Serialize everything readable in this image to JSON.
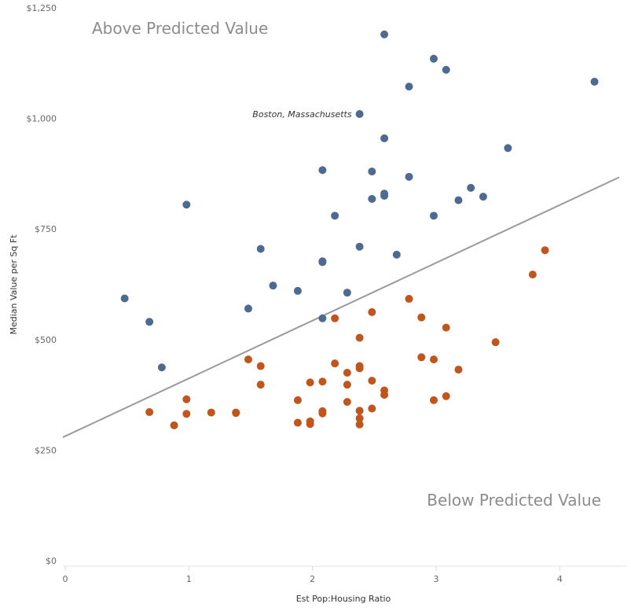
{
  "chart_data": {
    "type": "scatter",
    "xlabel": "Est Pop:Housing Ratio",
    "ylabel": "Median Value per Sq Ft",
    "xlim": [
      0,
      4.5
    ],
    "ylim": [
      0,
      1250
    ],
    "x_ticks": [
      "0",
      "1",
      "2",
      "3",
      "4"
    ],
    "y_ticks": [
      "$0",
      "$250",
      "$500",
      "$750",
      "$1,000",
      "$1,250"
    ],
    "grid": false,
    "region_labels": {
      "above": "Above Predicted Value",
      "below": "Below Predicted Value"
    },
    "colors": {
      "above": "#4e6a91",
      "below": "#c0561b",
      "trend": "#9a9a9a"
    },
    "trend_line": {
      "x": [
        0,
        4.5
      ],
      "y": [
        279,
        867
      ]
    },
    "annotation": {
      "text": "Boston, Massachusetts",
      "x": 2.4,
      "y": 1010
    },
    "series": [
      {
        "points": [
          [
            2.6,
            1190
          ],
          [
            3.0,
            1135
          ],
          [
            3.1,
            1110
          ],
          [
            2.8,
            1072
          ],
          [
            4.3,
            1083
          ],
          [
            2.4,
            1010
          ],
          [
            2.6,
            955
          ],
          [
            3.6,
            933
          ],
          [
            2.1,
            883
          ],
          [
            2.5,
            880
          ],
          [
            2.8,
            868
          ],
          [
            3.3,
            843
          ],
          [
            2.6,
            825
          ],
          [
            2.6,
            830
          ],
          [
            2.5,
            818
          ],
          [
            3.2,
            815
          ],
          [
            3.4,
            823
          ],
          [
            1.0,
            805
          ],
          [
            2.2,
            780
          ],
          [
            3.0,
            780
          ],
          [
            1.6,
            705
          ],
          [
            2.4,
            710
          ],
          [
            2.7,
            692
          ],
          [
            2.1,
            675
          ],
          [
            2.1,
            677
          ],
          [
            1.7,
            622
          ],
          [
            1.9,
            610
          ],
          [
            2.3,
            606
          ],
          [
            0.5,
            593
          ],
          [
            1.5,
            570
          ],
          [
            0.7,
            540
          ],
          [
            2.1,
            548
          ],
          [
            0.8,
            437
          ]
        ]
      },
      {
        "points": [
          [
            3.9,
            702
          ],
          [
            3.8,
            647
          ],
          [
            2.8,
            592
          ],
          [
            2.5,
            562
          ],
          [
            2.9,
            550
          ],
          [
            2.2,
            548
          ],
          [
            3.1,
            527
          ],
          [
            2.4,
            504
          ],
          [
            3.5,
            494
          ],
          [
            2.9,
            460
          ],
          [
            3.0,
            455
          ],
          [
            1.5,
            455
          ],
          [
            1.6,
            440
          ],
          [
            2.2,
            446
          ],
          [
            2.4,
            440
          ],
          [
            2.4,
            435
          ],
          [
            3.2,
            432
          ],
          [
            2.3,
            425
          ],
          [
            2.5,
            407
          ],
          [
            2.1,
            405
          ],
          [
            2.0,
            403
          ],
          [
            1.6,
            398
          ],
          [
            2.3,
            398
          ],
          [
            2.6,
            385
          ],
          [
            2.6,
            375
          ],
          [
            3.1,
            372
          ],
          [
            1.0,
            365
          ],
          [
            1.9,
            363
          ],
          [
            3.0,
            363
          ],
          [
            2.3,
            359
          ],
          [
            2.5,
            344
          ],
          [
            2.4,
            339
          ],
          [
            2.1,
            338
          ],
          [
            0.7,
            336
          ],
          [
            1.2,
            335
          ],
          [
            1.4,
            335
          ],
          [
            1.4,
            334
          ],
          [
            2.1,
            333
          ],
          [
            1.0,
            332
          ],
          [
            2.4,
            322
          ],
          [
            2.0,
            315
          ],
          [
            1.9,
            312
          ],
          [
            2.0,
            309
          ],
          [
            2.4,
            308
          ],
          [
            0.9,
            306
          ]
        ]
      }
    ]
  }
}
